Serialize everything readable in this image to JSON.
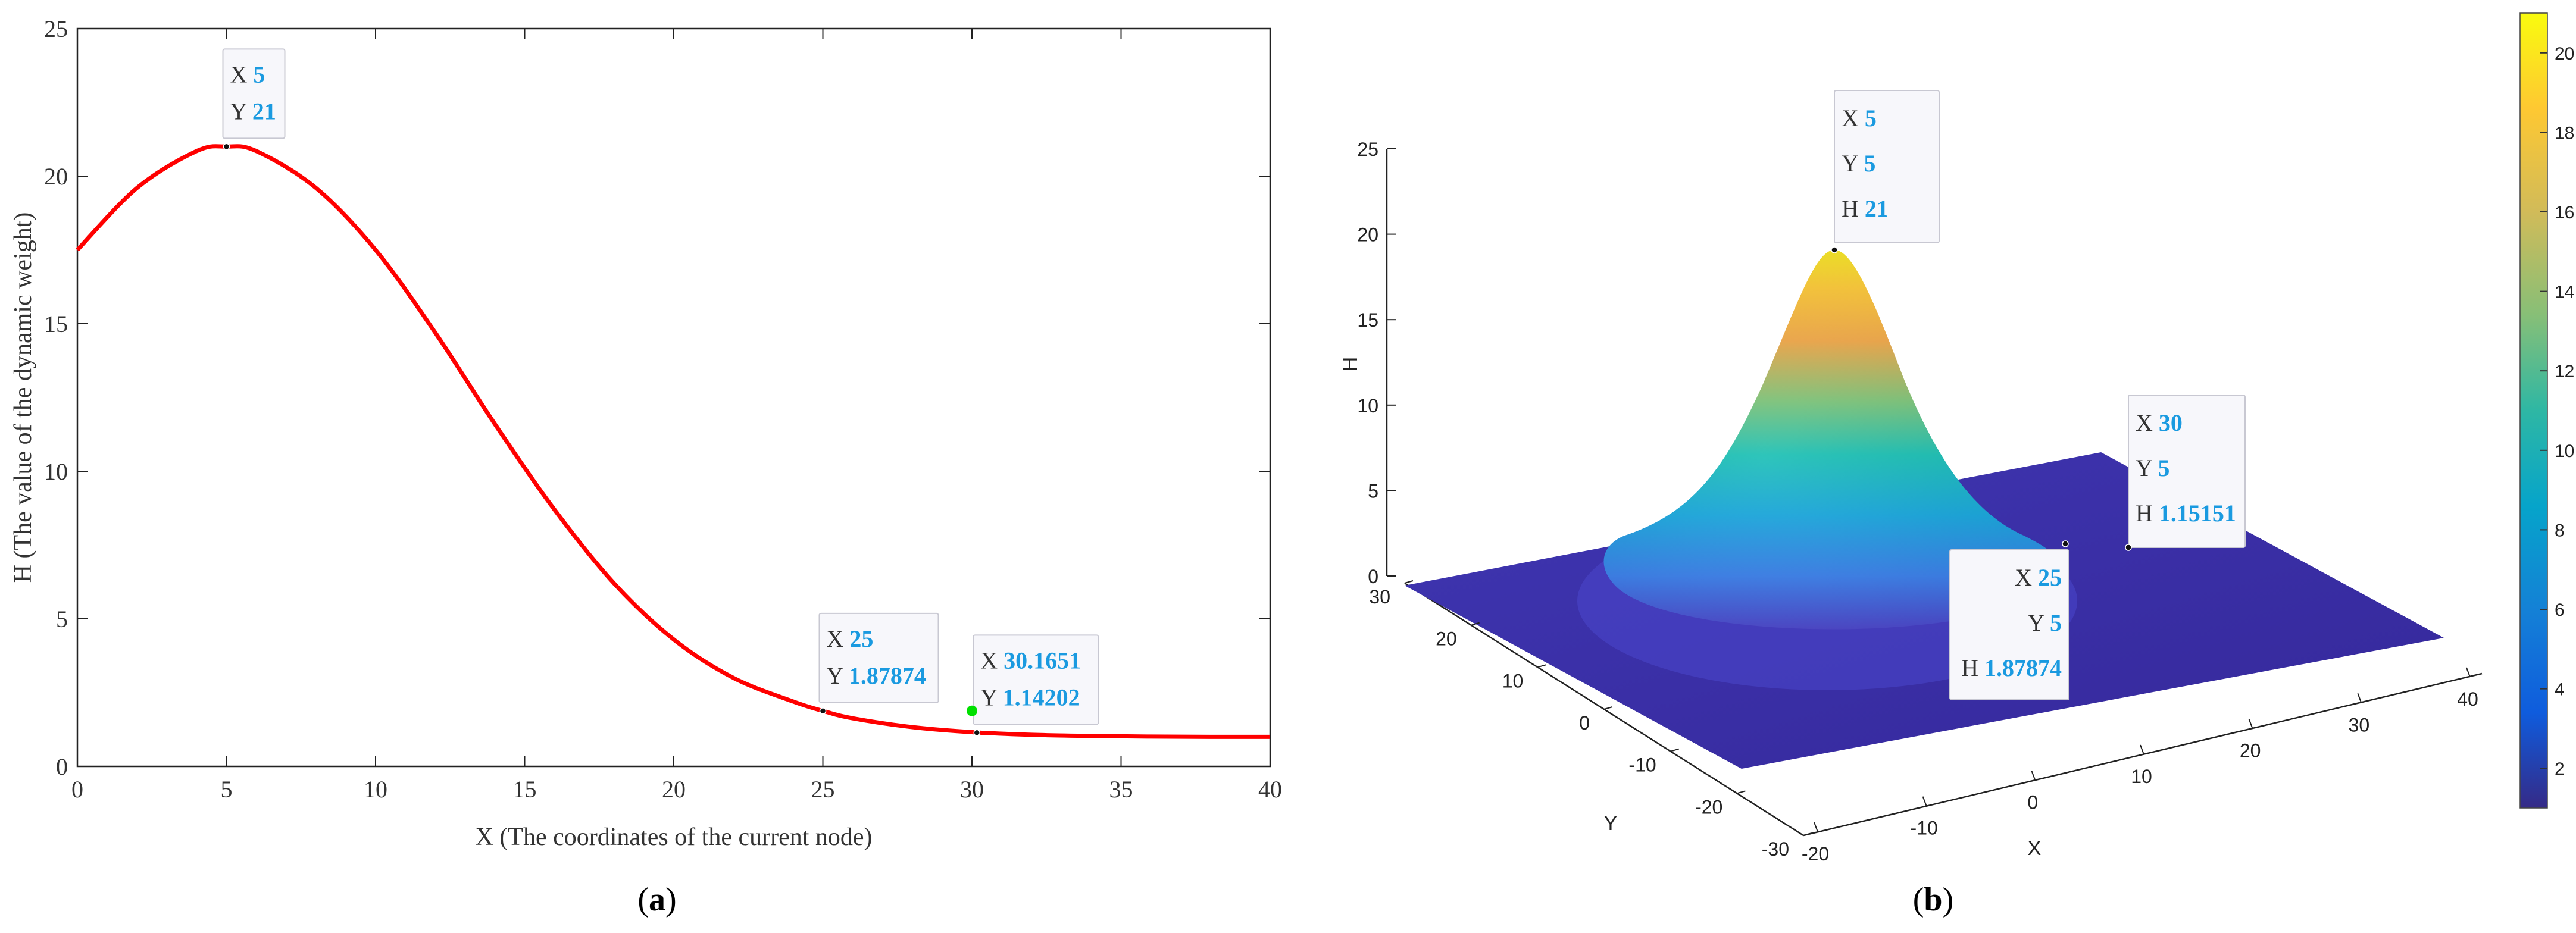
{
  "colors": {
    "curve": "#ff0000",
    "marker_green": "#00e000",
    "tip_value": "#1a9ae0",
    "tip_key": "#333333",
    "axis": "#222222",
    "surface_floor": "#3b2d9e"
  },
  "panels": {
    "a": {
      "letter": "a",
      "open": "(",
      "close": ")"
    },
    "b": {
      "letter": "b",
      "open": "(",
      "close": ")"
    }
  },
  "chart_data": [
    {
      "type": "line",
      "xlabel": "X (The coordinates of the current node)",
      "ylabel": "H (The value of the dynamic weight)",
      "xlim": [
        0,
        40
      ],
      "ylim": [
        0,
        25
      ],
      "xticks": [
        0,
        5,
        10,
        15,
        20,
        25,
        30,
        35,
        40
      ],
      "yticks": [
        0,
        5,
        10,
        15,
        20,
        25
      ],
      "grid": false,
      "series": [
        {
          "x": [
            0,
            2,
            4,
            5,
            6,
            8,
            10,
            12,
            14,
            16,
            18,
            20,
            22,
            24,
            25,
            26,
            28,
            30,
            32,
            34,
            36,
            38,
            40
          ],
          "values": [
            17.5,
            19.6,
            20.85,
            21,
            20.85,
            19.6,
            17.5,
            14.7,
            11.6,
            8.7,
            6.2,
            4.3,
            3.0,
            2.2,
            1.88,
            1.63,
            1.33,
            1.16,
            1.07,
            1.03,
            1.01,
            1.0,
            1.0
          ]
        }
      ],
      "datatips": [
        {
          "x": 5,
          "y": 21,
          "lines": [
            {
              "k": "X",
              "v": "5"
            },
            {
              "k": "Y",
              "v": "21"
            }
          ],
          "placement": "above-right"
        },
        {
          "x": 25,
          "y": 1.87874,
          "lines": [
            {
              "k": "X",
              "v": "25"
            },
            {
              "k": "Y",
              "v": "1.87874"
            }
          ],
          "placement": "above-right"
        },
        {
          "x": 30.1651,
          "y": 1.14202,
          "lines": [
            {
              "k": "X",
              "v": "30.1651"
            },
            {
              "k": "Y",
              "v": "1.14202"
            }
          ],
          "placement": "above-right"
        }
      ],
      "extra_markers": [
        {
          "x": 30,
          "y": 1.88,
          "color": "green"
        }
      ]
    },
    {
      "type": "surface",
      "xlabel": "X",
      "ylabel": "Y",
      "zlabel": "H",
      "xticks": [
        -20,
        -10,
        0,
        10,
        20,
        30,
        40
      ],
      "yticks": [
        -30,
        -20,
        -10,
        0,
        10,
        20,
        30
      ],
      "zticks": [
        0,
        5,
        10,
        15,
        20,
        25
      ],
      "colorbar": {
        "ticks": [
          2,
          4,
          6,
          8,
          10,
          12,
          14,
          16,
          18,
          20
        ],
        "range": [
          1,
          21
        ],
        "colormap": "parula"
      },
      "peak": {
        "x": 5,
        "y": 5,
        "h": 21
      },
      "datatips": [
        {
          "lines": [
            {
              "k": "X",
              "v": "5"
            },
            {
              "k": "Y",
              "v": "5"
            },
            {
              "k": "H",
              "v": "21"
            }
          ]
        },
        {
          "lines": [
            {
              "k": "X",
              "v": "30"
            },
            {
              "k": "Y",
              "v": "5"
            },
            {
              "k": "H",
              "v": "1.15151"
            }
          ]
        },
        {
          "lines": [
            {
              "k": "X",
              "v": "25"
            },
            {
              "k": "Y",
              "v": "5"
            },
            {
              "k": "H",
              "v": "1.87874"
            }
          ]
        }
      ]
    }
  ]
}
